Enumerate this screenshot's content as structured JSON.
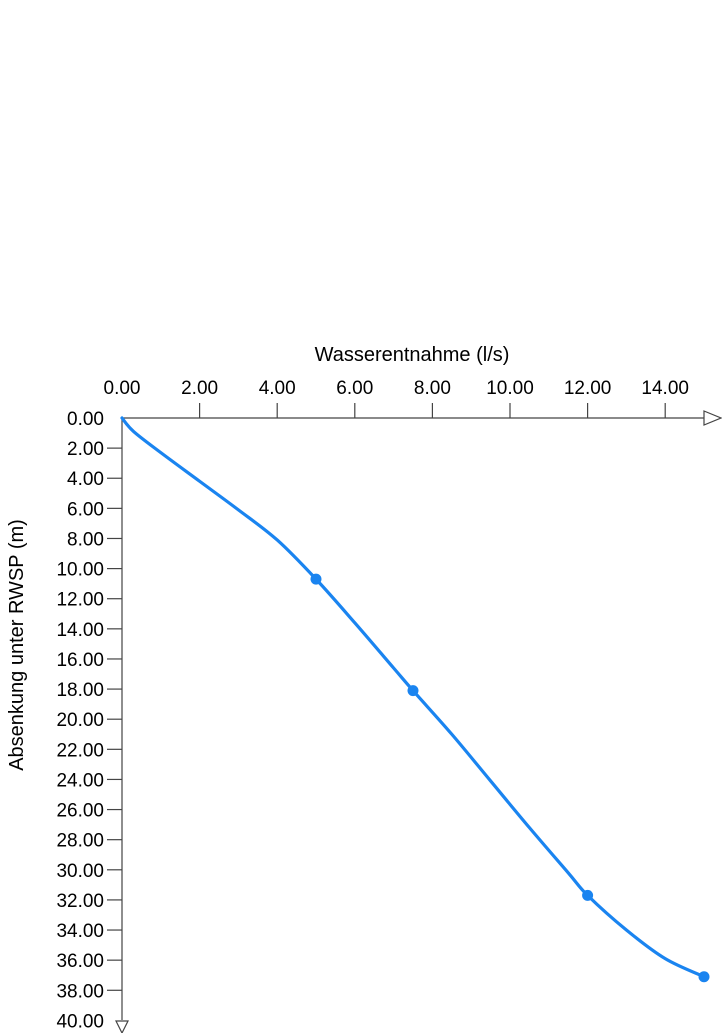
{
  "chart_data": {
    "type": "line",
    "title": "",
    "xlabel": "Wasserentnahme (l/s)",
    "ylabel": "Absenkung unter RWSP (m)",
    "x_axis_position": "top",
    "y_axis_inverted": true,
    "xlim": [
      0,
      15
    ],
    "ylim": [
      0,
      40
    ],
    "x_ticks": [
      "0.00",
      "2.00",
      "4.00",
      "6.00",
      "8.00",
      "10.00",
      "12.00",
      "14.00"
    ],
    "y_ticks": [
      "0.00",
      "2.00",
      "4.00",
      "6.00",
      "8.00",
      "10.00",
      "12.00",
      "14.00",
      "16.00",
      "18.00",
      "20.00",
      "22.00",
      "24.00",
      "26.00",
      "28.00",
      "30.00",
      "32.00",
      "34.00",
      "36.00",
      "38.00",
      "40.00"
    ],
    "grid": false,
    "series": [
      {
        "color": "#1a84f0",
        "markers": [
          {
            "x": 5.0,
            "y": 10.7
          },
          {
            "x": 7.5,
            "y": 18.1
          },
          {
            "x": 12.0,
            "y": 31.7
          },
          {
            "x": 15.0,
            "y": 37.1
          }
        ],
        "curve": [
          {
            "x": 0.0,
            "y": 0.0
          },
          {
            "x": 0.3,
            "y": 0.9
          },
          {
            "x": 1.0,
            "y": 2.3
          },
          {
            "x": 2.0,
            "y": 4.2
          },
          {
            "x": 3.0,
            "y": 6.1
          },
          {
            "x": 4.0,
            "y": 8.1
          },
          {
            "x": 5.0,
            "y": 10.7
          },
          {
            "x": 6.0,
            "y": 13.6
          },
          {
            "x": 7.0,
            "y": 16.6
          },
          {
            "x": 7.5,
            "y": 18.1
          },
          {
            "x": 8.5,
            "y": 21.0
          },
          {
            "x": 9.5,
            "y": 24.1
          },
          {
            "x": 10.5,
            "y": 27.2
          },
          {
            "x": 11.5,
            "y": 30.2
          },
          {
            "x": 12.0,
            "y": 31.7
          },
          {
            "x": 13.0,
            "y": 34.0
          },
          {
            "x": 14.0,
            "y": 35.9
          },
          {
            "x": 15.0,
            "y": 37.1
          }
        ]
      }
    ]
  }
}
